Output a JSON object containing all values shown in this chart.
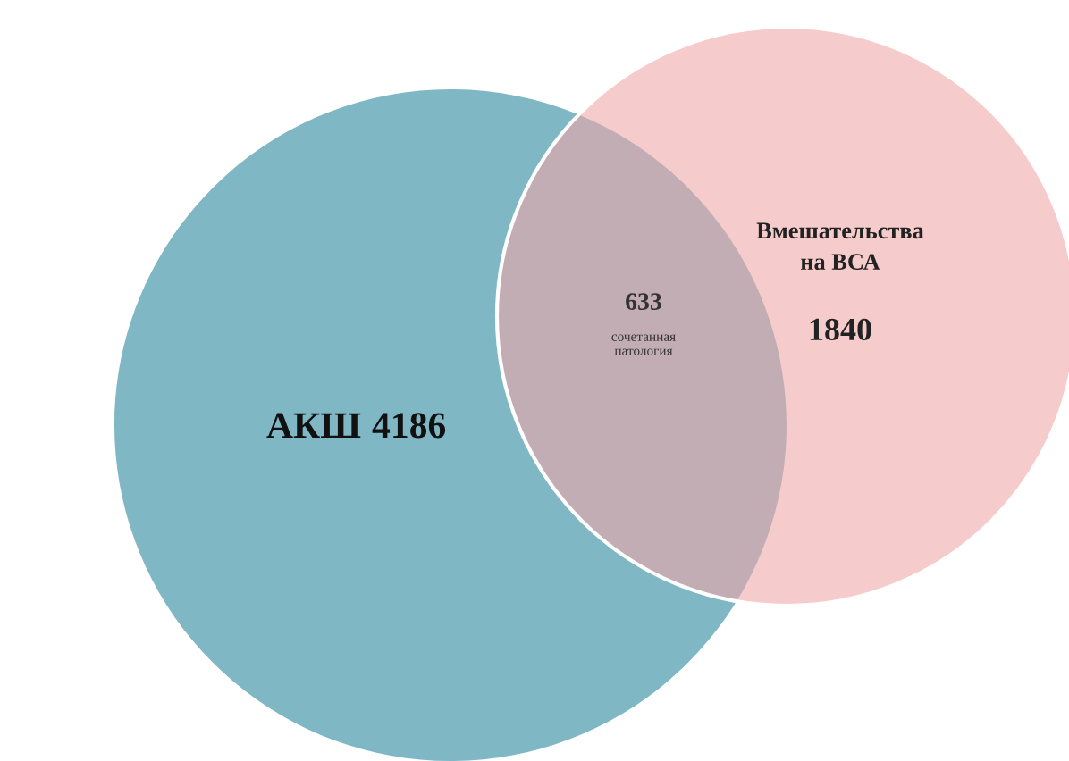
{
  "chart_data": {
    "type": "other",
    "categories": [
      "АКШ",
      "Вмешательства\nна ВСА",
      "сочетанная\nпатология"
    ],
    "values": [
      4186,
      1840,
      633
    ],
    "data_labels": true,
    "colors": [
      "#7fb7c5",
      "#f5cccb",
      "#c3adb5"
    ]
  }
}
